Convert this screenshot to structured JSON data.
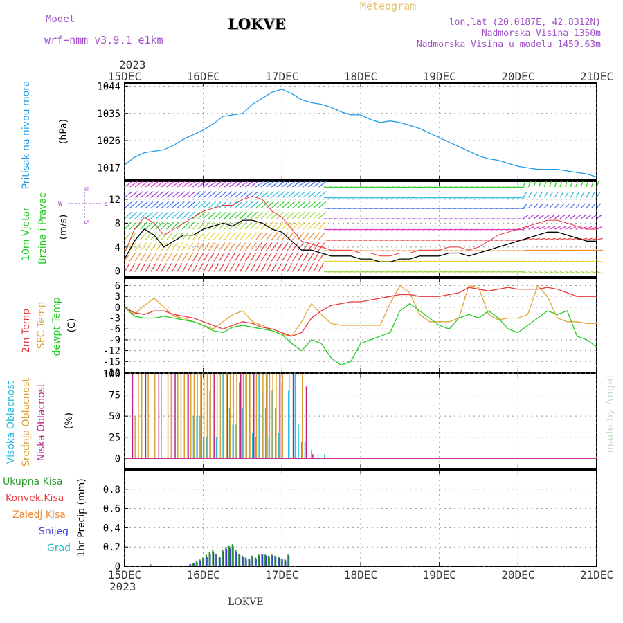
{
  "header": {
    "model_label": "Model",
    "model_name": "wrf−nmm_v3.9.1  e1km",
    "station": "LOKVE",
    "product": "Meteogram",
    "coords": "lon,lat (20.0187E, 42.8312N)",
    "altitude": "Nadmorska Visina 1350m",
    "model_altitude": "Nadmorska Visina u modelu 1459.63m",
    "year": "2023",
    "footer_station": "LOKVE",
    "credit": "made by Angel"
  },
  "colors": {
    "pressure": "#1e9be8",
    "temp_2m": "#e8373a",
    "sfc_temp": "#e3a63a",
    "dewpoint": "#22cc22",
    "wind_speed": "#000000",
    "gust": "#e8373a",
    "cloud_high": "#22bbdd",
    "cloud_mid": "#d8a030",
    "cloud_low": "#c0208c",
    "precip_total": "#2e9b2e",
    "precip_conv": "#e8373a",
    "precip_freezing": "#f08a30",
    "snow": "#3c3cd8",
    "hail": "#22bbbb"
  },
  "chart_data": [
    {
      "type": "line",
      "panel": "pressure",
      "ylabel_lines": [
        "Pritisak na nivou mora",
        "(hPa)"
      ],
      "unit": "(hPa)",
      "x_ticks": [
        "15DEC",
        "16DEC",
        "17DEC",
        "18DEC",
        "19DEC",
        "20DEC",
        "21DEC"
      ],
      "ylim": [
        1013,
        1045
      ],
      "yticks": [
        1017,
        1026,
        1035,
        1044
      ],
      "series": [
        {
          "x_hours": [
            0,
            3,
            6,
            9,
            12,
            15,
            18,
            21,
            24,
            27,
            30,
            33,
            36,
            39,
            42,
            45,
            48,
            51,
            54,
            57,
            60,
            63,
            66,
            69,
            72,
            75,
            78,
            81,
            84,
            87,
            90,
            93,
            96,
            99,
            102,
            105,
            108,
            111,
            114,
            117,
            120,
            123,
            126,
            129,
            132,
            135,
            138,
            141,
            144
          ],
          "values": [
            1018,
            1020.5,
            1022,
            1022.5,
            1023,
            1024.5,
            1026.5,
            1028,
            1029.5,
            1031.5,
            1034,
            1034.5,
            1035,
            1038,
            1040,
            1042,
            1043,
            1041.5,
            1039.5,
            1038.5,
            1038,
            1037,
            1035.5,
            1034.5,
            1034.5,
            1033,
            1032,
            1032.5,
            1032,
            1031,
            1030,
            1028.5,
            1027,
            1025.5,
            1024,
            1022.5,
            1021,
            1020,
            1019.5,
            1018.5,
            1017.5,
            1017,
            1016.5,
            1016.5,
            1016.5,
            1016,
            1015.5,
            1015,
            1014
          ]
        }
      ]
    },
    {
      "type": "line",
      "panel": "wind",
      "ylabel_lines": [
        "10m Vjetar",
        "Brzina i Pravac",
        "(m/s)"
      ],
      "unit": "(m/s)",
      "compass": {
        "n": "N",
        "s": "S",
        "w": "W",
        "e": "E"
      },
      "ylim": [
        -1,
        15
      ],
      "yticks": [
        0,
        4,
        8,
        12
      ],
      "series": [
        {
          "name": "wind_speed",
          "x_hours": [
            0,
            3,
            6,
            9,
            12,
            15,
            18,
            21,
            24,
            27,
            30,
            33,
            36,
            39,
            42,
            45,
            48,
            51,
            54,
            57,
            60,
            63,
            66,
            69,
            72,
            75,
            78,
            81,
            84,
            87,
            90,
            93,
            96,
            99,
            102,
            105,
            108,
            111,
            114,
            117,
            120,
            123,
            126,
            129,
            132,
            135,
            138,
            141,
            144
          ],
          "values": [
            2,
            5,
            7,
            6,
            4,
            5,
            6,
            6,
            7,
            7.5,
            8,
            7.5,
            8.5,
            8.5,
            8,
            7,
            6.5,
            5,
            3.5,
            3.5,
            3,
            2.5,
            2.5,
            2.5,
            2,
            2,
            1.5,
            1.5,
            2,
            2,
            2.5,
            2.5,
            2.5,
            3,
            3,
            2.5,
            3,
            3.5,
            4,
            4.5,
            5,
            5.5,
            6,
            6.5,
            6.5,
            6,
            5.5,
            5,
            5
          ]
        },
        {
          "name": "gust",
          "x_hours": [
            0,
            3,
            6,
            9,
            12,
            15,
            18,
            21,
            24,
            27,
            30,
            33,
            36,
            39,
            42,
            45,
            48,
            51,
            54,
            57,
            60,
            63,
            66,
            69,
            72,
            75,
            78,
            81,
            84,
            87,
            90,
            93,
            96,
            99,
            102,
            105,
            108,
            111,
            114,
            117,
            120,
            123,
            126,
            129,
            132,
            135,
            138,
            141,
            144
          ],
          "values": [
            3,
            7,
            9,
            8,
            6,
            7,
            8,
            9,
            10,
            10.5,
            11,
            11,
            12,
            12.5,
            12,
            10,
            9,
            7,
            5,
            4.5,
            4,
            3.5,
            3.5,
            3.5,
            3,
            3,
            2.5,
            2.5,
            3,
            3,
            3.5,
            3.5,
            3.5,
            4,
            4,
            3.5,
            4,
            5,
            6,
            6.5,
            7,
            7.5,
            8,
            8.5,
            8.5,
            8,
            7.5,
            7,
            7
          ]
        }
      ]
    },
    {
      "type": "line",
      "panel": "temperature",
      "ylabel_lines": [
        "2m Temp",
        "SFC Temp",
        "dewpt Temp",
        "(C)"
      ],
      "unit": "(C)",
      "ylim": [
        -18,
        8
      ],
      "yticks": [
        6,
        3,
        0,
        -3,
        -6,
        -9,
        -12,
        -15,
        -18
      ],
      "series": [
        {
          "name": "2m Temp",
          "x_hours": [
            0,
            3,
            6,
            9,
            12,
            15,
            18,
            21,
            24,
            27,
            30,
            33,
            36,
            39,
            42,
            45,
            48,
            51,
            54,
            57,
            60,
            63,
            66,
            69,
            72,
            75,
            78,
            81,
            84,
            87,
            90,
            93,
            96,
            99,
            102,
            105,
            108,
            111,
            114,
            117,
            120,
            123,
            126,
            129,
            132,
            135,
            138,
            141,
            144
          ],
          "values": [
            0,
            -1.5,
            -2,
            -1,
            -1,
            -2,
            -2.5,
            -3,
            -4,
            -5,
            -6,
            -5,
            -4,
            -4.5,
            -5.5,
            -6,
            -7,
            -8,
            -7,
            -3,
            -1,
            0.5,
            1,
            1.5,
            1.5,
            2,
            2.5,
            3,
            3.5,
            3.5,
            3,
            3,
            3,
            3.5,
            4,
            5.5,
            5,
            4.5,
            5,
            5.5,
            5,
            5,
            5,
            5.5,
            5,
            4,
            3,
            3,
            3
          ]
        },
        {
          "name": "SFC Temp",
          "x_hours": [
            0,
            3,
            6,
            9,
            12,
            15,
            18,
            21,
            24,
            27,
            30,
            33,
            36,
            39,
            42,
            45,
            48,
            51,
            54,
            57,
            60,
            63,
            66,
            69,
            72,
            75,
            78,
            81,
            84,
            87,
            90,
            93,
            96,
            99,
            102,
            105,
            108,
            111,
            114,
            117,
            120,
            123,
            126,
            129,
            132,
            135,
            138,
            141,
            144
          ],
          "values": [
            0,
            -2,
            0.5,
            2.5,
            0,
            -2.5,
            -3,
            -4,
            -5,
            -6,
            -4,
            -2,
            -1,
            -4,
            -5,
            -6.5,
            -7.5,
            -8,
            -4,
            1,
            -2,
            -4.5,
            -5,
            -5,
            -5,
            -5,
            -5,
            1,
            6,
            4,
            -2,
            -4,
            -4,
            -4,
            -3,
            6,
            5.5,
            -2,
            -3.5,
            -3,
            -3,
            -2,
            6,
            3,
            -3,
            -4,
            -4,
            -4.5,
            -4.5
          ]
        },
        {
          "name": "dewpt Temp",
          "x_hours": [
            0,
            3,
            6,
            9,
            12,
            15,
            18,
            21,
            24,
            27,
            30,
            33,
            36,
            39,
            42,
            45,
            48,
            51,
            54,
            57,
            60,
            63,
            66,
            69,
            72,
            75,
            78,
            81,
            84,
            87,
            90,
            93,
            96,
            99,
            102,
            105,
            108,
            111,
            114,
            117,
            120,
            123,
            126,
            129,
            132,
            135,
            138,
            141,
            144
          ],
          "values": [
            0,
            -2.5,
            -3,
            -3,
            -2.5,
            -3,
            -3.5,
            -4,
            -5,
            -6.5,
            -7,
            -5.5,
            -5,
            -5.5,
            -6,
            -6.5,
            -7.5,
            -10,
            -12,
            -9,
            -10,
            -14,
            -16,
            -15,
            -10,
            -9,
            -8,
            -7,
            -1,
            1,
            -1,
            -3,
            -5,
            -6,
            -3,
            -2,
            -3,
            -1,
            -3,
            -6,
            -7,
            -5,
            -3,
            -1,
            -2,
            -1,
            -8,
            -9,
            -11
          ]
        }
      ]
    },
    {
      "type": "bar",
      "panel": "cloud",
      "ylabel_lines": [
        "Visoka Oblacnost",
        "Srednja Oblacnost",
        "Niska Oblacnost",
        "(%)"
      ],
      "unit": "(%)",
      "ylim": [
        0,
        100
      ],
      "yticks": [
        0,
        25,
        50,
        75,
        100
      ],
      "series": [
        {
          "name": "Visoka Oblacnost",
          "x_hours": [
            21,
            22,
            23,
            24,
            25,
            26,
            27,
            28,
            30,
            31,
            32,
            33,
            34,
            35,
            36,
            37,
            38,
            39,
            40,
            41,
            42,
            43,
            44,
            45,
            46,
            47,
            48,
            50,
            52,
            53,
            54,
            55,
            57,
            59,
            61
          ],
          "values": [
            50,
            50,
            50,
            25,
            25,
            80,
            25,
            25,
            100,
            20,
            60,
            40,
            40,
            90,
            60,
            100,
            100,
            30,
            25,
            100,
            80,
            60,
            25,
            80,
            60,
            30,
            90,
            80,
            100,
            40,
            20,
            20,
            10,
            5,
            5
          ]
        },
        {
          "name": "Srednja Oblacnost",
          "x_hours": [
            3,
            4,
            5,
            7,
            9,
            11,
            13,
            14,
            16,
            17,
            18,
            19,
            20,
            21,
            22,
            23,
            24,
            25,
            26,
            27,
            28,
            29,
            30,
            31,
            32,
            33,
            34,
            35,
            36,
            37,
            38,
            39,
            40,
            41,
            42,
            43,
            44,
            45,
            46,
            47,
            48,
            50,
            52,
            54
          ],
          "values": [
            50,
            100,
            100,
            100,
            100,
            100,
            100,
            100,
            100,
            100,
            100,
            100,
            100,
            100,
            100,
            100,
            100,
            100,
            100,
            100,
            100,
            100,
            100,
            100,
            100,
            100,
            100,
            100,
            100,
            100,
            100,
            100,
            100,
            100,
            100,
            100,
            100,
            100,
            100,
            100,
            100,
            100,
            100,
            100
          ]
        },
        {
          "name": "Niska Oblacnost",
          "x_hours": [
            2,
            6,
            10,
            15,
            19,
            23,
            27,
            31,
            35,
            39,
            43,
            47,
            51,
            55,
            57
          ],
          "values": [
            100,
            100,
            100,
            100,
            100,
            100,
            100,
            100,
            100,
            100,
            100,
            100,
            100,
            85,
            5
          ]
        }
      ]
    },
    {
      "type": "bar",
      "panel": "precip",
      "ylabel_lines": [
        "1hr Precip (mm)"
      ],
      "unit": "1hr Precip (mm)",
      "ylim": [
        0,
        1
      ],
      "yticks": [
        0,
        0.2,
        0.4,
        0.6,
        0.8
      ],
      "legend": [
        "Ukupna Kisa",
        "Konvek.Kisa",
        "Zaledj.Kisa",
        "Snijeg",
        "Grad"
      ],
      "series": [
        {
          "name": "Ukupna Kisa",
          "x_hours": [
            8,
            20,
            21,
            22,
            23,
            24,
            25,
            26,
            27,
            28,
            29,
            30,
            31,
            32,
            33,
            34,
            35,
            36,
            37,
            38,
            39,
            40,
            41,
            42,
            43,
            44,
            45,
            46,
            47,
            48,
            49,
            50
          ],
          "values": [
            0.02,
            0.02,
            0.03,
            0.05,
            0.07,
            0.09,
            0.12,
            0.15,
            0.17,
            0.13,
            0.1,
            0.17,
            0.2,
            0.21,
            0.23,
            0.17,
            0.13,
            0.11,
            0.09,
            0.08,
            0.11,
            0.09,
            0.12,
            0.13,
            0.12,
            0.11,
            0.12,
            0.11,
            0.1,
            0.08,
            0.07,
            0.12
          ]
        },
        {
          "name": "Snijeg",
          "x_hours": [
            20,
            21,
            22,
            23,
            24,
            25,
            26,
            27,
            28,
            29,
            30,
            31,
            32,
            33,
            34,
            35,
            36,
            37,
            38,
            39,
            40,
            41,
            42,
            43,
            44,
            45,
            46,
            47,
            48,
            49,
            50
          ],
          "values": [
            0.02,
            0.03,
            0.04,
            0.06,
            0.08,
            0.1,
            0.13,
            0.15,
            0.11,
            0.09,
            0.15,
            0.18,
            0.19,
            0.21,
            0.15,
            0.12,
            0.1,
            0.08,
            0.07,
            0.1,
            0.08,
            0.11,
            0.12,
            0.11,
            0.1,
            0.11,
            0.1,
            0.09,
            0.07,
            0.06,
            0.11
          ]
        }
      ]
    }
  ]
}
